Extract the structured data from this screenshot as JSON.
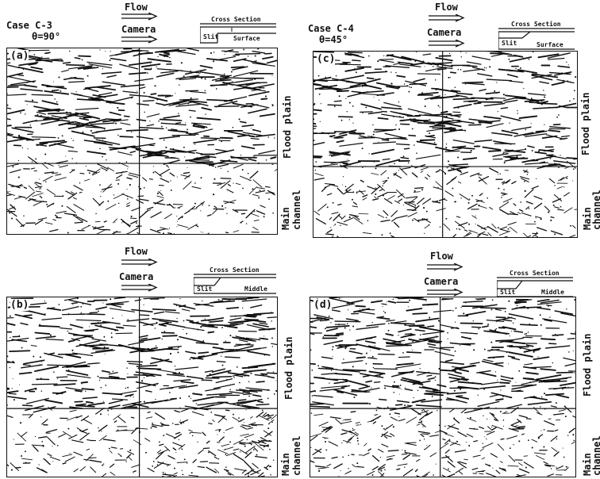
{
  "panels": [
    {
      "letter": "(a)",
      "case": "Case C-3",
      "angle": "θ=90°",
      "section": "Surface"
    },
    {
      "letter": "(b)",
      "case": "",
      "angle": "",
      "section": "Middle"
    },
    {
      "letter": "(c)",
      "case": "Case C-4",
      "angle": "θ=45°",
      "section": "Surface"
    },
    {
      "letter": "(d)",
      "case": "",
      "angle": "",
      "section": "Middle"
    }
  ],
  "labels": {
    "flow": "Flow",
    "camera": "Camera",
    "cross_section": "Cross Section",
    "slit": "Slit",
    "flood_plain": "Flood plain",
    "main_channel_1": "Main",
    "main_channel_2": "channel"
  }
}
